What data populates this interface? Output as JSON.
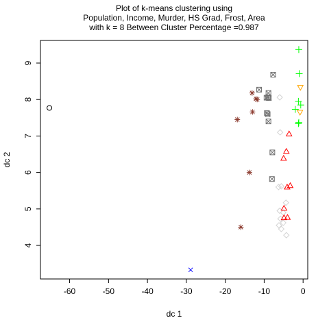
{
  "chart_data": {
    "type": "scatter",
    "title_lines": [
      "Plot of k-means clustering using",
      "Population, Income, Murder, HS Grad, Frost, Area",
      "with  k = 8 Between Cluster Percentage =0.987"
    ],
    "xlabel": "dc 1",
    "ylabel": "dc 2",
    "xlim": [
      -67.5,
      1.2
    ],
    "ylim": [
      3.08,
      9.62
    ],
    "x_ticks": [
      -60,
      -50,
      -40,
      -30,
      -20,
      -10,
      0
    ],
    "y_ticks": [
      4,
      5,
      6,
      7,
      8,
      9
    ],
    "grid": false,
    "legend": "none",
    "series": [
      {
        "marker": "circle",
        "color": "#000000",
        "points": [
          [
            -65.2,
            7.77
          ]
        ]
      },
      {
        "marker": "cross",
        "color": "#0000FF",
        "points": [
          [
            -28.9,
            3.33
          ]
        ]
      },
      {
        "marker": "asterisk",
        "color": "#8B3A2E",
        "points": [
          [
            -13.1,
            8.18
          ],
          [
            -12.1,
            8.02
          ],
          [
            -11.8,
            8.0
          ],
          [
            -13.0,
            7.66
          ],
          [
            -16.9,
            7.45
          ],
          [
            -13.8,
            6.0
          ],
          [
            -16.0,
            4.5
          ]
        ]
      },
      {
        "marker": "boxed-x",
        "color": "#707070",
        "points": [
          [
            -7.7,
            8.68
          ],
          [
            -11.3,
            8.27
          ],
          [
            -8.9,
            8.18
          ],
          [
            -9.4,
            8.05
          ],
          [
            -9.0,
            8.06
          ],
          [
            -8.8,
            8.04
          ],
          [
            -9.3,
            7.63
          ],
          [
            -9.1,
            7.6
          ],
          [
            -8.9,
            7.4
          ],
          [
            -7.9,
            6.55
          ],
          [
            -8.0,
            5.82
          ]
        ]
      },
      {
        "marker": "diamond",
        "color": "#D3D3D3",
        "points": [
          [
            -6.0,
            8.06
          ],
          [
            -5.9,
            7.1
          ],
          [
            -6.3,
            5.6
          ],
          [
            -5.6,
            5.62
          ],
          [
            -4.4,
            5.17
          ],
          [
            -6.0,
            4.95
          ],
          [
            -5.1,
            4.9
          ],
          [
            -5.8,
            4.73
          ],
          [
            -5.1,
            4.62
          ],
          [
            -6.2,
            4.55
          ],
          [
            -5.6,
            4.45
          ],
          [
            -4.3,
            4.28
          ]
        ]
      },
      {
        "marker": "triangle",
        "color": "#FF0000",
        "points": [
          [
            -3.6,
            7.06
          ],
          [
            -4.3,
            6.58
          ],
          [
            -5.0,
            6.39
          ],
          [
            -3.3,
            5.64
          ],
          [
            -4.1,
            5.6
          ],
          [
            -4.9,
            5.02
          ],
          [
            -4.9,
            4.76
          ],
          [
            -4.0,
            4.77
          ]
        ]
      },
      {
        "marker": "plus",
        "color": "#00FF00",
        "points": [
          [
            -1.1,
            9.37
          ],
          [
            -1.0,
            8.71
          ],
          [
            -1.2,
            7.95
          ],
          [
            -0.6,
            7.85
          ],
          [
            -2.0,
            7.73
          ],
          [
            -1.1,
            7.37
          ],
          [
            -1.2,
            7.34
          ]
        ]
      },
      {
        "marker": "triangle-down",
        "color": "#FFA500",
        "points": [
          [
            -0.7,
            8.33
          ],
          [
            -0.8,
            7.65
          ]
        ]
      }
    ]
  }
}
